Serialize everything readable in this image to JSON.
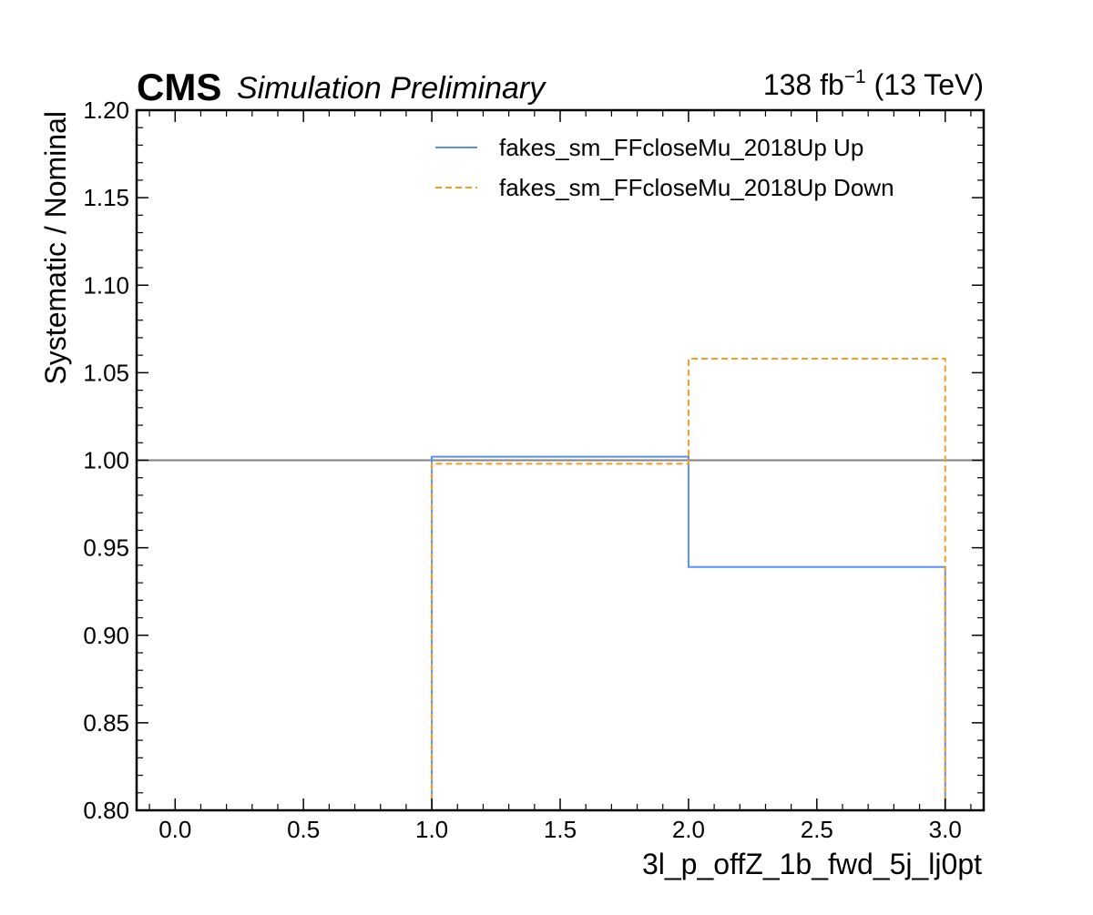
{
  "chart_data": {
    "type": "line",
    "drawstyle": "step",
    "header": {
      "experiment": "CMS",
      "extra": "Simulation Preliminary",
      "lumi_value": "138 fb",
      "lumi_exponent": "−1",
      "lumi_energy": " (13 TeV)"
    },
    "xlabel": "3l_p_offZ_1b_fwd_5j_lj0pt",
    "ylabel": "Systematic / Nominal",
    "xlim": [
      -0.15,
      3.15
    ],
    "ylim": [
      0.8,
      1.2
    ],
    "xticks": [
      0.0,
      0.5,
      1.0,
      1.5,
      2.0,
      2.5,
      3.0
    ],
    "xtick_labels": [
      "0.0",
      "0.5",
      "1.0",
      "1.5",
      "2.0",
      "2.5",
      "3.0"
    ],
    "yticks": [
      0.8,
      0.85,
      0.9,
      0.95,
      1.0,
      1.05,
      1.1,
      1.15,
      1.2
    ],
    "ytick_labels": [
      "0.80",
      "0.85",
      "0.90",
      "0.95",
      "1.00",
      "1.05",
      "1.10",
      "1.15",
      "1.20"
    ],
    "reference_line": {
      "y": 1.0,
      "color": "#808080"
    },
    "bin_edges": [
      1.0,
      2.0,
      3.0
    ],
    "series": [
      {
        "name": "fakes_sm_FFcloseMu_2018Up Up",
        "values": [
          1.002,
          0.939
        ],
        "color": "#5790fc",
        "style": "solid"
      },
      {
        "name": "fakes_sm_FFcloseMu_2018Up Down",
        "values": [
          0.998,
          1.058
        ],
        "color": "#f89c20",
        "style": "dashed"
      }
    ],
    "legend_position": "top-right",
    "grid": false
  }
}
